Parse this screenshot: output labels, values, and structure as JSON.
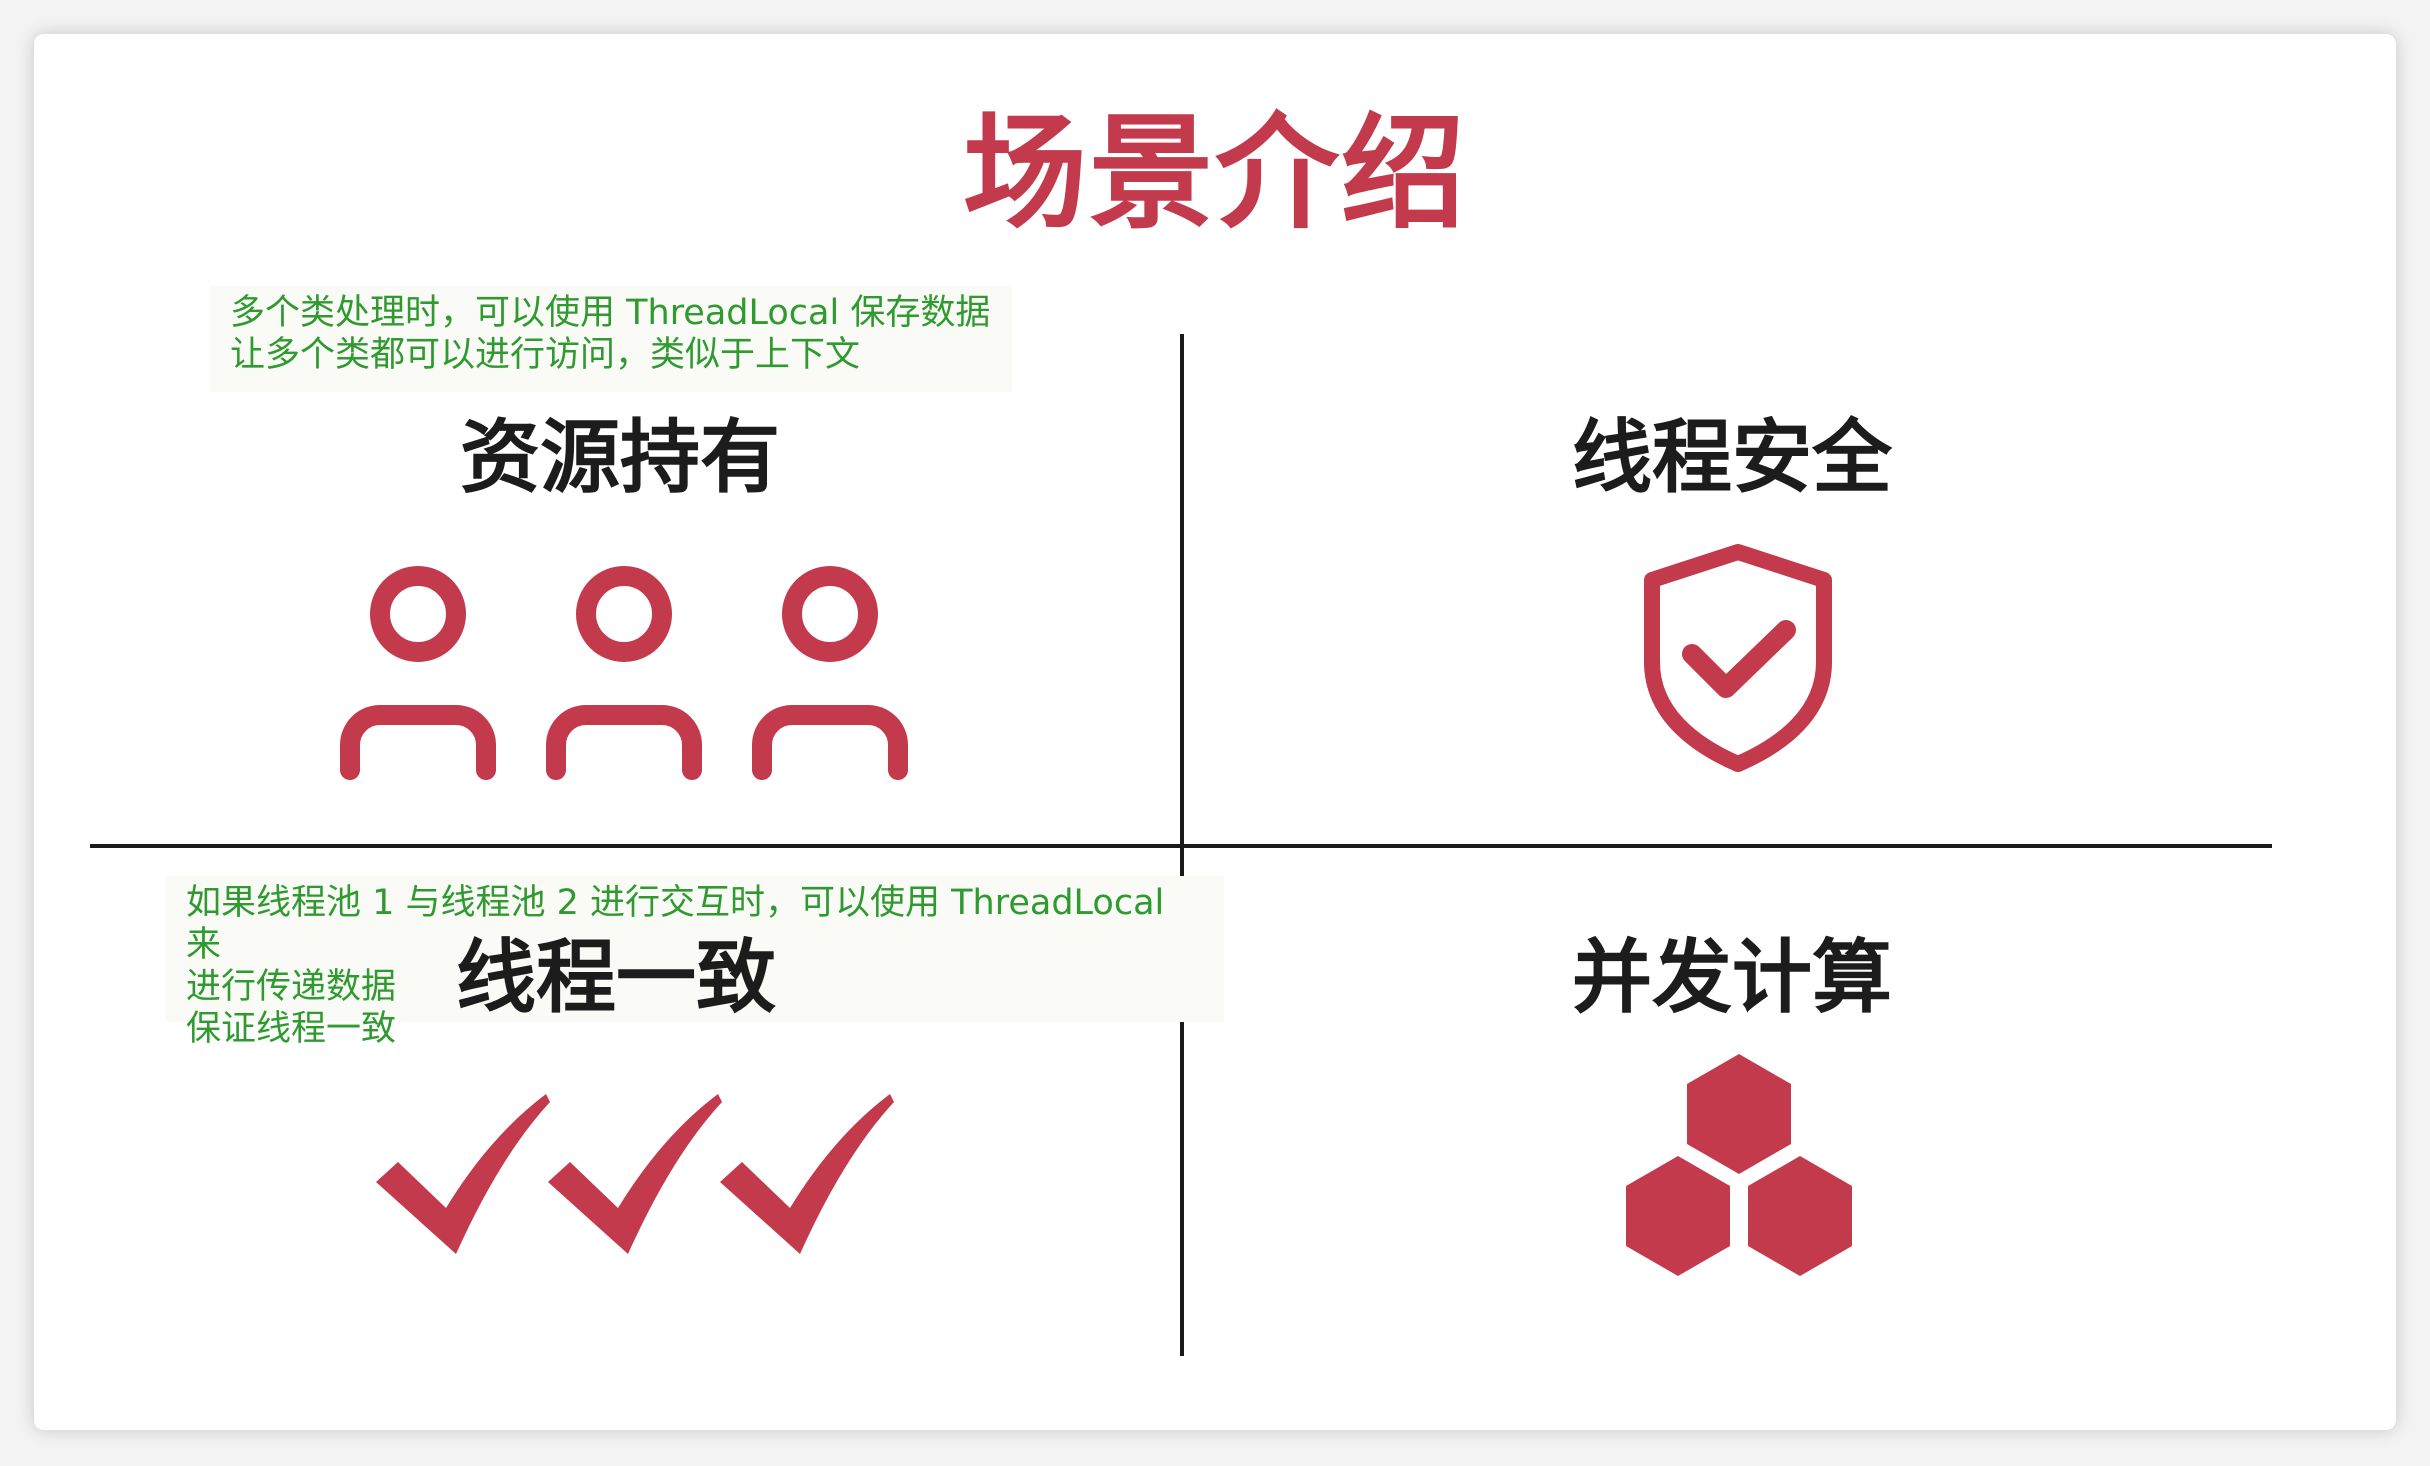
{
  "title": "场景介绍",
  "quadrants": {
    "top_left": {
      "heading": "资源持有",
      "icon": "three-users-icon",
      "note": "多个类处理时，可以使用 ThreadLocal 保存数据\n让多个类都可以进行访问，类似于上下文"
    },
    "top_right": {
      "heading": "线程安全",
      "icon": "shield-check-icon"
    },
    "bottom_left": {
      "heading": "线程一致",
      "icon": "three-checkmarks-icon",
      "note": "如果线程池 1 与线程池 2 进行交互时，可以使用 ThreadLocal 来\n进行传递数据\n保证线程一致"
    },
    "bottom_right": {
      "heading": "并发计算",
      "icon": "hexagon-cluster-icon"
    }
  },
  "colors": {
    "accent": "#c23a4b",
    "note_text": "#2f9a2f",
    "heading": "#1c1c1c"
  }
}
